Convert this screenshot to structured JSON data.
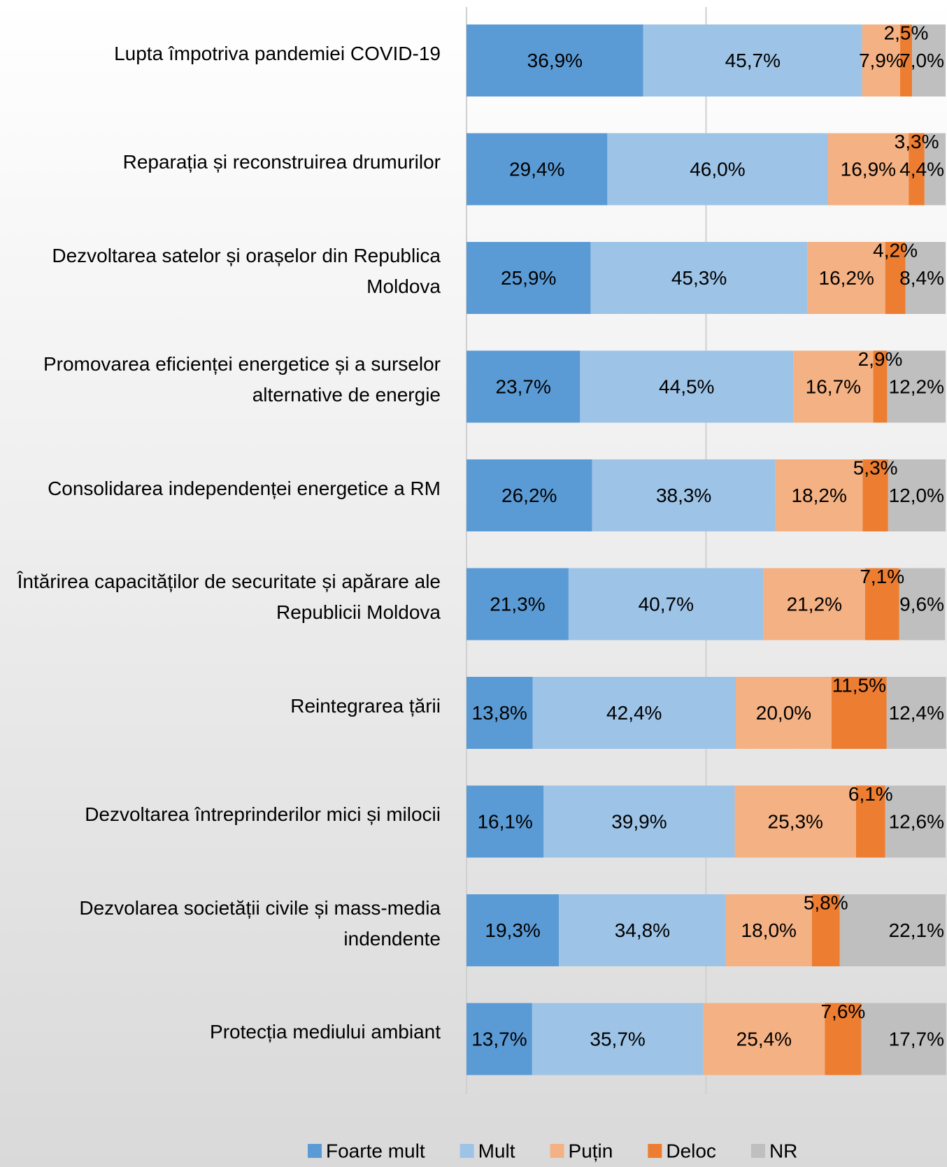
{
  "chart_data": {
    "type": "stacked-barh",
    "categories": [
      "Lupta împotriva pandemiei COVID-19",
      "Reparația și reconstruirea drumurilor",
      "Dezvoltarea satelor și orașelor din Republica Moldova",
      "Promovarea eficienței energetice și a surselor alternative de energie",
      "Consolidarea independenței energetice a RM",
      "Întărirea capacităților de securitate și apărare ale Republicii Moldova",
      "Reintegrarea țării",
      "Dezvoltarea întreprinderilor mici și milocii",
      "Dezvolarea societății civile și mass-media indendente",
      "Protecția mediului ambiant"
    ],
    "series": [
      {
        "name": "Foarte mult",
        "color": "#5b9bd5",
        "values": [
          36.9,
          29.4,
          25.9,
          23.7,
          26.2,
          21.3,
          13.8,
          16.1,
          19.3,
          13.7
        ],
        "value_labels": [
          "36,9%",
          "29,4%",
          "25,9%",
          "23,7%",
          "26,2%",
          "21,3%",
          "13,8%",
          "16,1%",
          "19,3%",
          "13,7%"
        ]
      },
      {
        "name": "Mult",
        "color": "#9dc3e6",
        "values": [
          45.7,
          46.0,
          45.3,
          44.5,
          38.3,
          40.7,
          42.4,
          39.9,
          34.8,
          35.7
        ],
        "value_labels": [
          "45,7%",
          "46,0%",
          "45,3%",
          "44,5%",
          "38,3%",
          "40,7%",
          "42,4%",
          "39,9%",
          "34,8%",
          "35,7%"
        ]
      },
      {
        "name": "Puțin",
        "color": "#f4b183",
        "values": [
          7.9,
          16.9,
          16.2,
          16.7,
          18.2,
          21.2,
          20.0,
          25.3,
          18.0,
          25.4
        ],
        "value_labels": [
          "7,9%",
          "16,9%",
          "16,2%",
          "16,7%",
          "18,2%",
          "21,2%",
          "20,0%",
          "25,3%",
          "18,0%",
          "25,4%"
        ]
      },
      {
        "name": "Deloc",
        "color": "#ed7d31",
        "values": [
          2.5,
          3.3,
          4.2,
          2.9,
          5.3,
          7.1,
          11.5,
          6.1,
          5.8,
          7.6
        ],
        "value_labels": [
          "2,5%",
          "3,3%",
          "4,2%",
          "2,9%",
          "5,3%",
          "7,1%",
          "11,5%",
          "6,1%",
          "5,8%",
          "7,6%"
        ]
      },
      {
        "name": "NR",
        "color": "#bfbfbf",
        "values": [
          7.0,
          4.4,
          8.4,
          12.2,
          12.0,
          9.6,
          12.4,
          12.6,
          22.1,
          17.7
        ],
        "value_labels": [
          "7,0%",
          "4,4%",
          "8,4%",
          "12,2%",
          "12,0%",
          "9,6%",
          "12,4%",
          "12,6%",
          "22,1%",
          "17,7%"
        ]
      }
    ],
    "xlim": [
      0,
      100
    ],
    "grid": true,
    "legend": "bottom"
  }
}
